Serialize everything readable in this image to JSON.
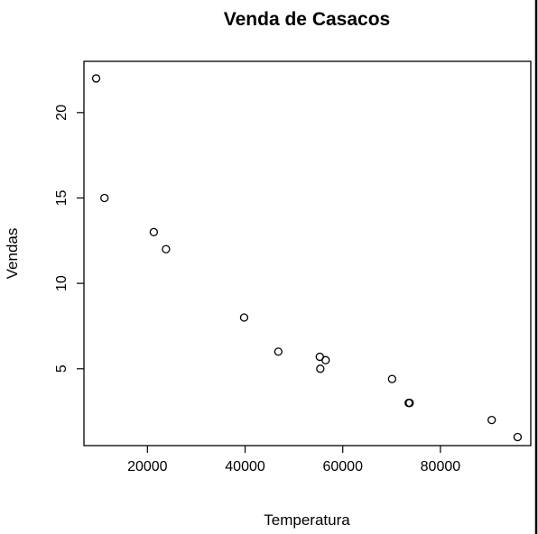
{
  "chart_data": {
    "type": "scatter",
    "title": "Venda de Casacos",
    "xlabel": "Temperatura",
    "ylabel": "Vendas",
    "x_ticks": [
      20000,
      40000,
      60000,
      80000
    ],
    "y_ticks": [
      5,
      10,
      15,
      20
    ],
    "x_tick_labels": [
      "20000",
      "40000",
      "60000",
      "80000"
    ],
    "y_tick_labels": [
      "5",
      "10",
      "15",
      "20"
    ],
    "xlim": [
      7000,
      98500
    ],
    "ylim": [
      0.5,
      23
    ],
    "grid": false,
    "points": [
      {
        "x": 9500,
        "y": 22
      },
      {
        "x": 11200,
        "y": 15
      },
      {
        "x": 21300,
        "y": 13
      },
      {
        "x": 23800,
        "y": 12
      },
      {
        "x": 39800,
        "y": 8
      },
      {
        "x": 46800,
        "y": 6
      },
      {
        "x": 55300,
        "y": 5.7
      },
      {
        "x": 56500,
        "y": 5.5
      },
      {
        "x": 55400,
        "y": 5
      },
      {
        "x": 70100,
        "y": 4.4
      },
      {
        "x": 73500,
        "y": 3
      },
      {
        "x": 73700,
        "y": 3
      },
      {
        "x": 90500,
        "y": 2
      },
      {
        "x": 95800,
        "y": 1
      }
    ]
  }
}
